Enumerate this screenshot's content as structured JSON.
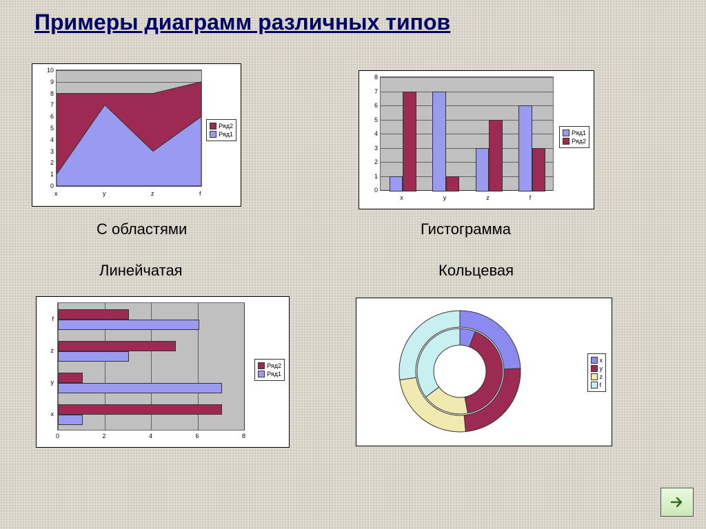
{
  "title": "Примеры диаграмм различных типов",
  "colors": {
    "series1": "#9a9af0",
    "series2": "#9c2a52",
    "ring_x": "#8a8af0",
    "ring_y": "#9c2a52",
    "ring_z": "#f0eab0",
    "ring_f": "#c8f0f0",
    "plot_bg": "#c0c0c0",
    "panel_bg": "#ffffff"
  },
  "captions": {
    "area": "С областями",
    "hist": "Гистограмма",
    "hbar": "Линейчатая",
    "ring": "Кольцевая"
  },
  "area_chart": {
    "type": "area",
    "categories": [
      "x",
      "y",
      "z",
      "f"
    ],
    "series2": [
      8,
      8,
      8,
      9
    ],
    "series1": [
      1,
      7,
      3,
      6
    ],
    "ylim": [
      0,
      10
    ],
    "ytick_step": 1,
    "legend": [
      "Ряд2",
      "Ряд1"
    ]
  },
  "hist_chart": {
    "type": "bar",
    "categories": [
      "x",
      "y",
      "z",
      "f"
    ],
    "series1": [
      1,
      7,
      3,
      6
    ],
    "series2": [
      7,
      1,
      5,
      3
    ],
    "ylim": [
      0,
      8
    ],
    "ytick_step": 1,
    "legend": [
      "Ряд1",
      "Ряд2"
    ]
  },
  "hbar_chart": {
    "type": "hbar",
    "categories": [
      "x",
      "y",
      "z",
      "f"
    ],
    "series1": [
      1,
      7,
      3,
      6
    ],
    "series2": [
      7,
      1,
      5,
      3
    ],
    "xlim": [
      0,
      8
    ],
    "xtick_step": 2,
    "legend": [
      "Ряд2",
      "Ряд1"
    ]
  },
  "ring_chart": {
    "type": "doughnut",
    "categories": [
      "x",
      "y",
      "z",
      "f"
    ],
    "outer": [
      8,
      8,
      8,
      9
    ],
    "inner": [
      1,
      7,
      3,
      6
    ],
    "legend": [
      "x",
      "y",
      "z",
      "f"
    ]
  }
}
